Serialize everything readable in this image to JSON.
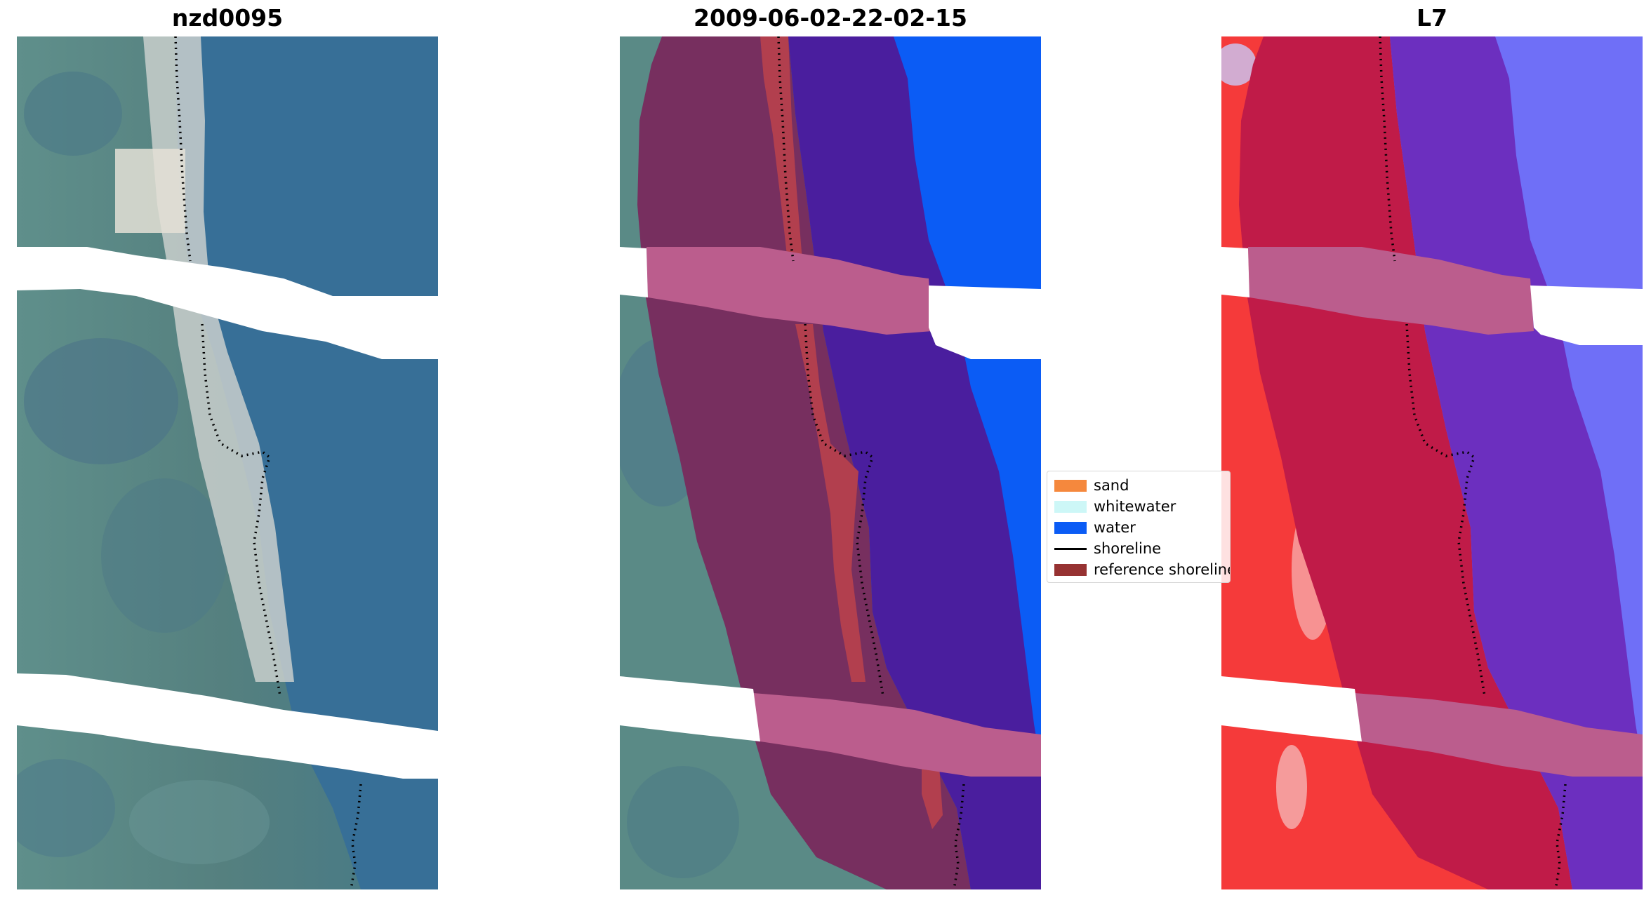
{
  "panels": [
    {
      "title": "nzd0095"
    },
    {
      "title": "2009-06-02-22-02-15"
    },
    {
      "title": "L7"
    }
  ],
  "legend": [
    {
      "label": "sand",
      "color": "#f5883d",
      "kind": "patch"
    },
    {
      "label": "whitewater",
      "color": "#cdf7f7",
      "kind": "patch"
    },
    {
      "label": "water",
      "color": "#0b5cf5",
      "kind": "patch"
    },
    {
      "label": "shoreline",
      "color": "#000000",
      "kind": "line"
    },
    {
      "label": "reference shoreline",
      "color": "#963232",
      "kind": "patch"
    }
  ],
  "colors": {
    "rgb_water": "#376f97",
    "rgb_land": "#5a8a86",
    "rgb_beach": "#d8dad8",
    "class_water": "#0b5cf5",
    "buffer_land": "#772f5f",
    "buffer_water": "#4a1e9e",
    "buffer_sand": "#b23f4e",
    "reference_band": "#bb5d8d",
    "mndwi_land": "#f53a3a",
    "mndwi_buffer_land": "#c01b48",
    "mndwi_buffer_water": "#6c2fbf",
    "mndwi_water": "#6f6ff7"
  }
}
